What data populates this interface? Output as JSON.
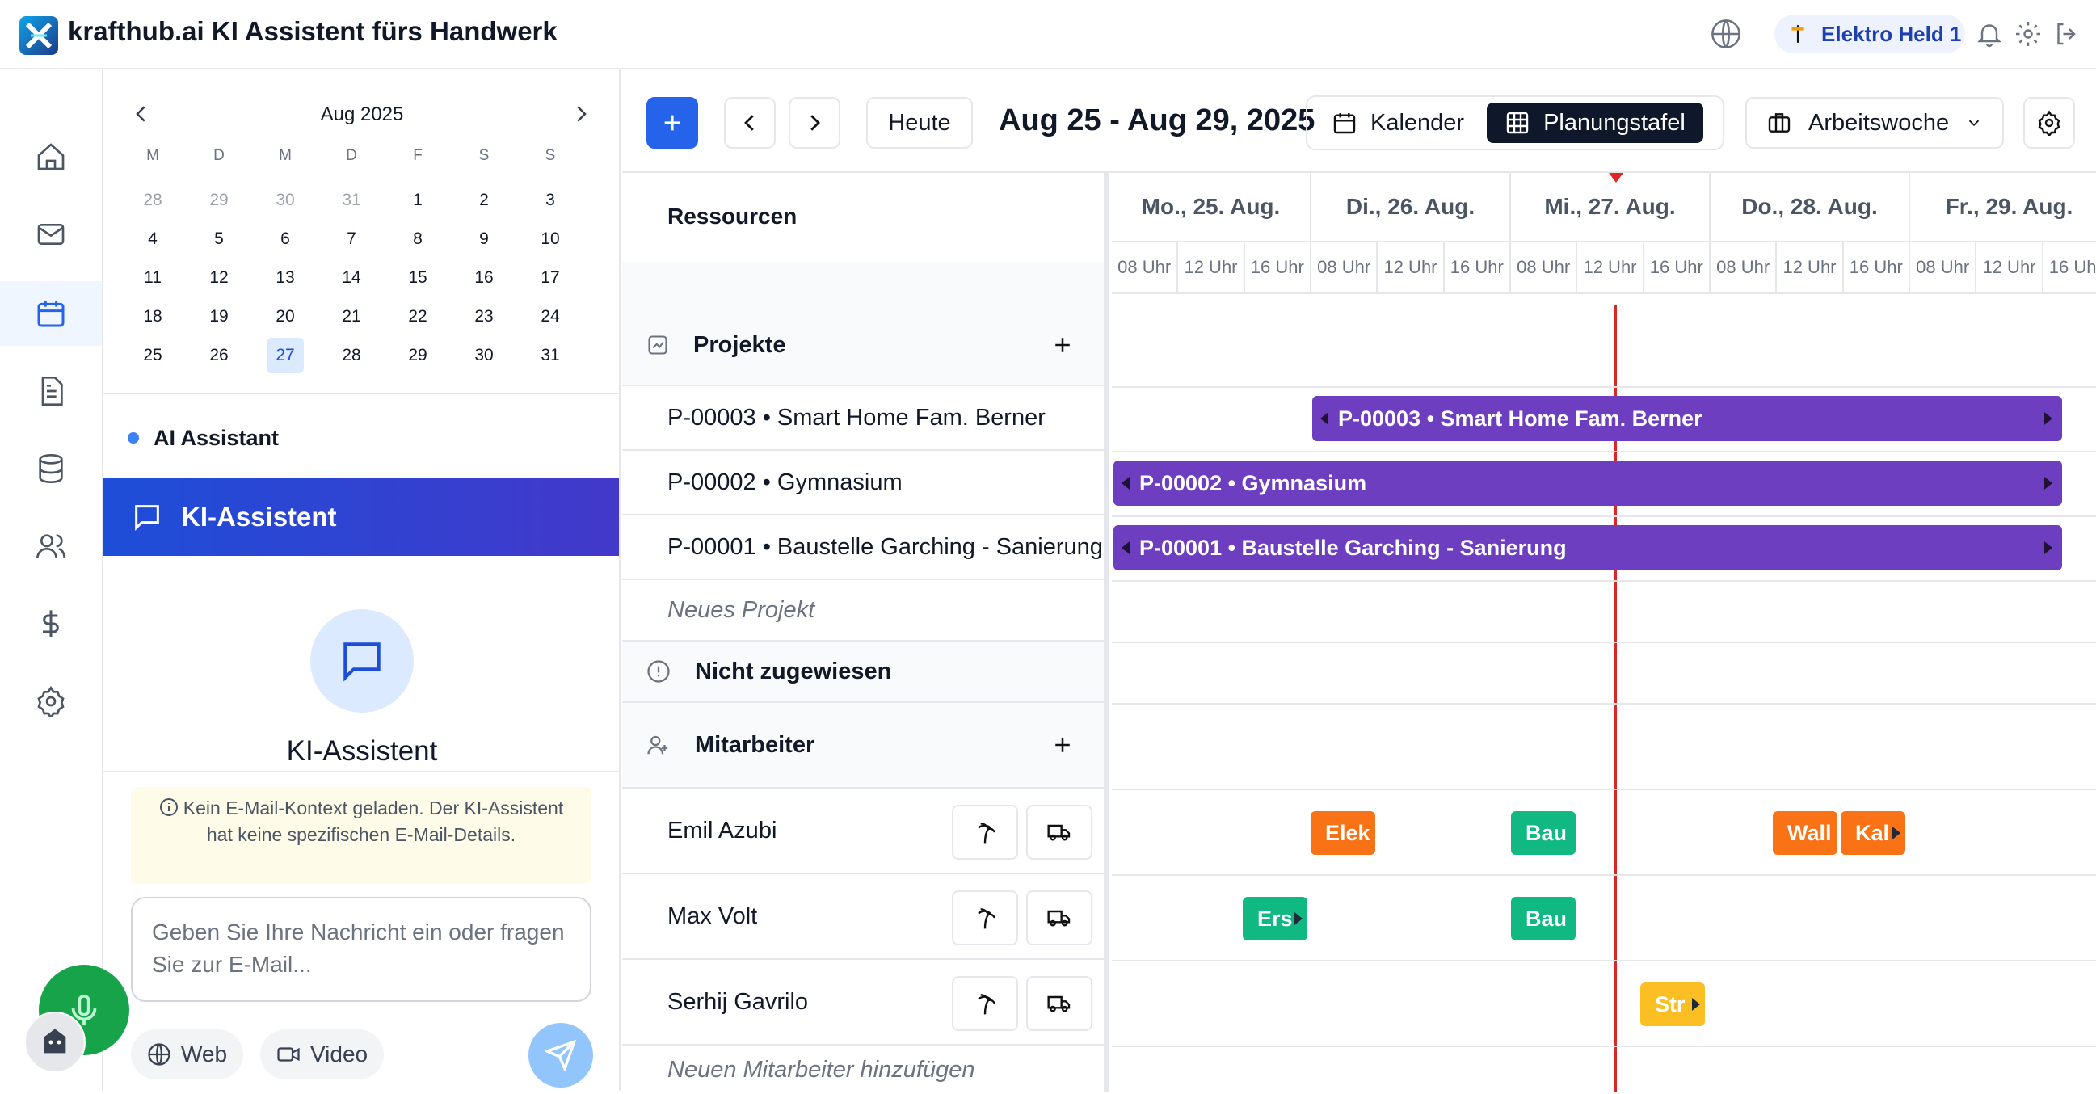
{
  "app": {
    "title": "krafthub.ai KI Assistent fürs Handwerk",
    "user": "Elektro Held 1"
  },
  "calendar": {
    "month": "Aug 2025",
    "weekdays": [
      "M",
      "D",
      "M",
      "D",
      "F",
      "S",
      "S"
    ],
    "days": [
      "28",
      "29",
      "30",
      "31",
      "1",
      "2",
      "3",
      "4",
      "5",
      "6",
      "7",
      "8",
      "9",
      "10",
      "11",
      "12",
      "13",
      "14",
      "15",
      "16",
      "17",
      "18",
      "19",
      "20",
      "21",
      "22",
      "23",
      "24",
      "25",
      "26",
      "27",
      "28",
      "29",
      "30",
      "31"
    ],
    "today": "27"
  },
  "assistant": {
    "section_label": "AI Assistant",
    "header": "KI-Assistent",
    "title": "KI-Assistent",
    "notice": "Kein E-Mail-Kontext geladen. Der KI-Assistent hat keine spezifischen E-Mail-Details.",
    "input_placeholder": "Geben Sie Ihre Nachricht ein oder fragen Sie zur E-Mail...",
    "web_label": "Web",
    "video_label": "Video"
  },
  "toolbar": {
    "today": "Heute",
    "range": "Aug 25 - Aug 29, 2025",
    "view_calendar": "Kalender",
    "view_planner": "Planungstafel",
    "period": "Arbeitswoche"
  },
  "planner": {
    "resources_header": "Ressourcen",
    "days": [
      "Mo., 25. Aug.",
      "Di., 26. Aug.",
      "Mi., 27. Aug.",
      "Do., 28. Aug.",
      "Fr., 29. Aug."
    ],
    "hours": [
      "08 Uhr",
      "12 Uhr",
      "16 Uhr"
    ],
    "projects_group": "Projekte",
    "projects": [
      {
        "label": "P-00003 • Smart Home Fam. Berner",
        "bar": "P-00003 • Smart Home Fam. Berner"
      },
      {
        "label": "P-00002 • Gymnasium",
        "bar": "P-00002 • Gymnasium"
      },
      {
        "label": "P-00001 • Baustelle Garching - Sanierung",
        "bar": "P-00001 • Baustelle Garching - Sanierung"
      }
    ],
    "new_project": "Neues Projekt",
    "unassigned": "Nicht zugewiesen",
    "staff_group": "Mitarbeiter",
    "staff": [
      "Emil Azubi",
      "Max Volt",
      "Serhij Gavrilo"
    ],
    "new_staff": "Neuen Mitarbeiter hinzufügen",
    "tasks": [
      "Elek",
      "Bau",
      "Wall",
      "Kal",
      "Ers",
      "Bau",
      "Str"
    ],
    "colors": {
      "project": "#6d3fc0",
      "orange": "#f97316",
      "green": "#10b981",
      "yellow": "#fbbf24",
      "now": "#dc2626"
    }
  }
}
